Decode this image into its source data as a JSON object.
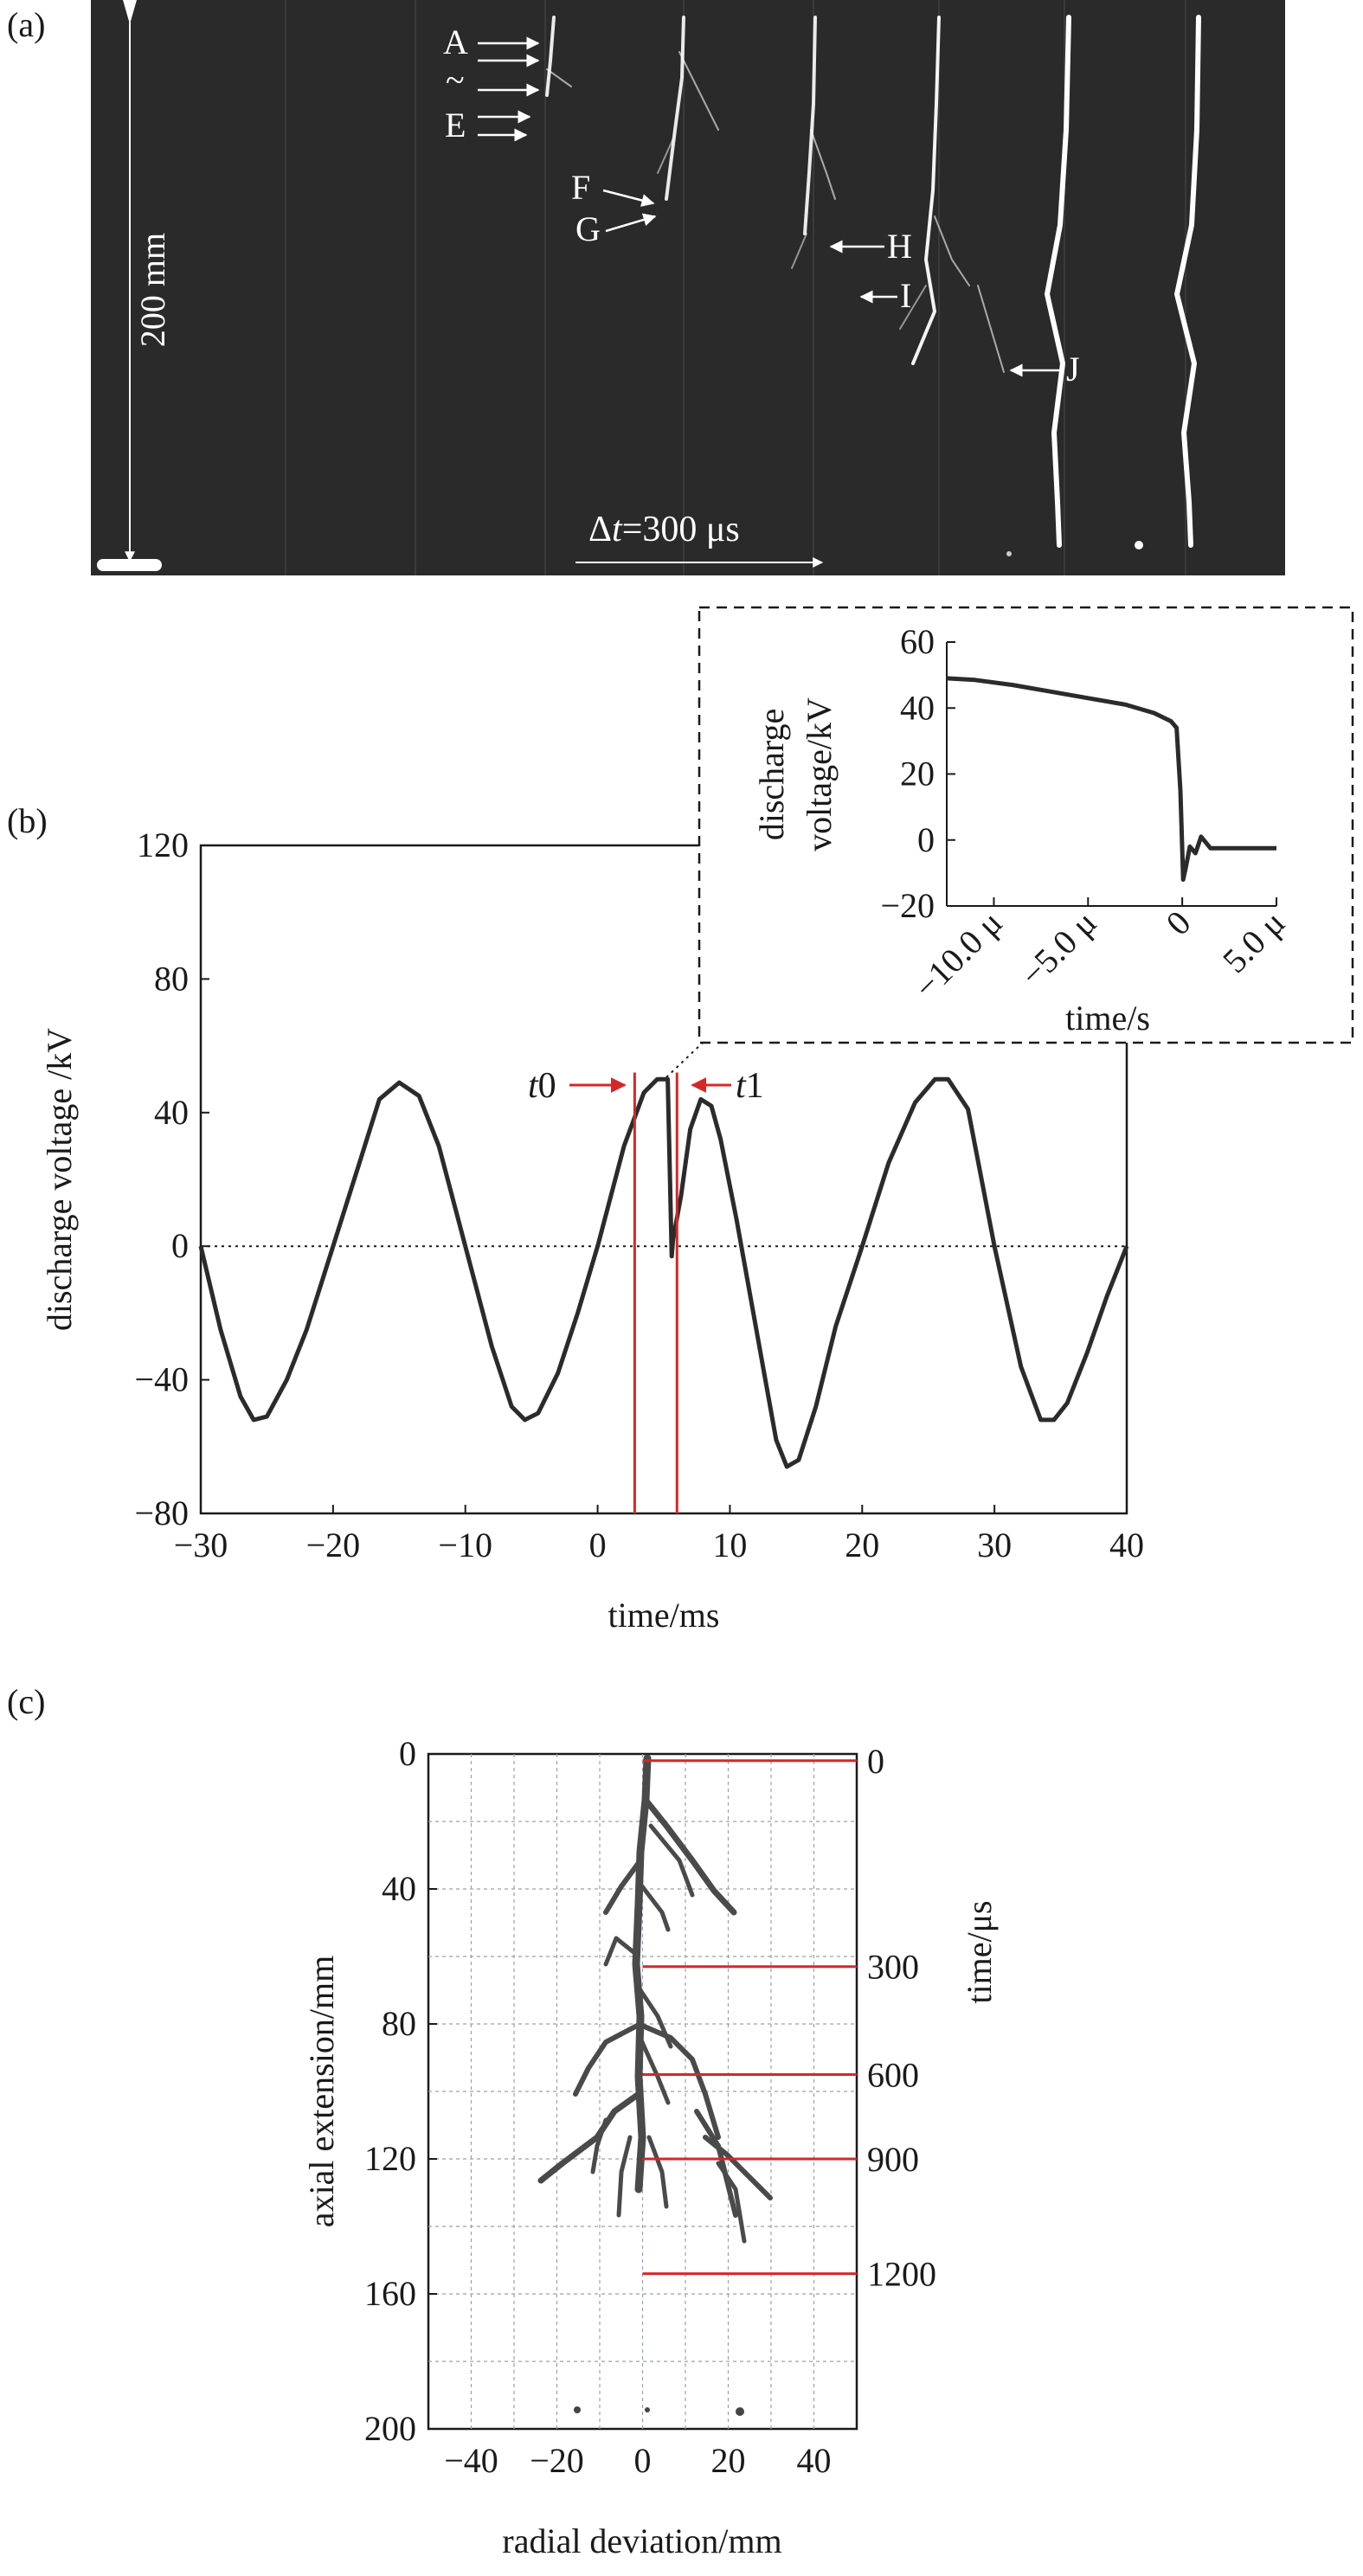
{
  "panel_labels": {
    "a": "(a)",
    "b": "(b)",
    "c": "(c)"
  },
  "colors": {
    "accent_red": "#d62728",
    "curve": "#2b2b2b",
    "photo_bg": "#2a2a2a",
    "streamer": "#ffffff"
  },
  "panel_a": {
    "labels": {
      "A": "A",
      "tilde": "~",
      "E": "E",
      "F": "F",
      "G": "G",
      "H": "H",
      "I": "I",
      "J": "J"
    },
    "scale_vertical": "200 mm",
    "time_scale": {
      "prefix": "Δ",
      "var": "t",
      "suffix": "=300 μs"
    }
  },
  "chart_data": [
    {
      "id": "main",
      "type": "line",
      "xlabel": "time/ms",
      "ylabel": "discharge voltage /kV",
      "xlim": [
        -30,
        40
      ],
      "ylim": [
        -80,
        120
      ],
      "xticks": [
        "−30",
        "−20",
        "−10",
        "0",
        "10",
        "20",
        "30",
        "40"
      ],
      "yticks": [
        "120",
        "80",
        "40",
        "0",
        "−40",
        "−80"
      ],
      "markers": {
        "t0": {
          "italic": "t",
          "num": "0",
          "x": 2.8
        },
        "t1": {
          "italic": "t",
          "num": "1",
          "x": 6.0
        }
      },
      "series": [
        {
          "x": [
            -30,
            -28.5,
            -27,
            -26,
            -25,
            -23.5,
            -22,
            -20,
            -18,
            -16.5,
            -15,
            -13.5,
            -12,
            -10,
            -8,
            -6.5,
            -5.5,
            -4.5,
            -3,
            -1.5,
            0,
            2,
            3.5,
            4.5,
            5.3,
            5.6,
            5.7,
            6.3,
            7,
            7.8,
            8.6,
            9.3,
            10.5,
            12,
            13.5,
            14.3,
            15.2,
            16.5,
            18,
            20,
            22,
            24,
            25.5,
            26.5,
            28,
            30,
            32,
            33.5,
            34.5,
            35.5,
            37,
            38.5,
            40
          ],
          "y": [
            0,
            -25,
            -45,
            -52,
            -51,
            -40,
            -25,
            0,
            25,
            44,
            49,
            45,
            30,
            0,
            -30,
            -48,
            -52,
            -50,
            -38,
            -20,
            0,
            30,
            46,
            50,
            50,
            -3,
            2,
            15,
            35,
            44,
            42,
            32,
            8,
            -25,
            -58,
            -66,
            -64,
            -48,
            -24,
            0,
            25,
            43,
            50,
            50,
            41,
            0,
            -36,
            -52,
            -52,
            -47,
            -32,
            -15,
            0
          ]
        }
      ]
    },
    {
      "id": "inset",
      "type": "line",
      "xlabel": "time/s",
      "ylabel_line1": "discharge",
      "ylabel_line2": "voltage/kV",
      "xlim": [
        -12.5,
        5
      ],
      "ylim": [
        -20,
        60
      ],
      "xticks": [
        "−10.0 μ",
        "−5.0 μ",
        "0",
        "5.0 μ"
      ],
      "yticks": [
        "60",
        "40",
        "20",
        "0",
        "−20"
      ],
      "series": [
        {
          "x": [
            -12.5,
            -11,
            -9,
            -7,
            -5,
            -3,
            -1.5,
            -0.6,
            -0.3,
            -0.1,
            0.05,
            0.2,
            0.4,
            0.7,
            1,
            1.5,
            2,
            3,
            4,
            5
          ],
          "y": [
            49,
            48.5,
            47,
            45,
            43,
            41,
            38.5,
            36,
            34,
            15,
            -12,
            -8,
            -2,
            -4,
            1,
            -2.5,
            -2.5,
            -2.5,
            -2.5,
            -2.5
          ]
        }
      ]
    },
    {
      "id": "branch",
      "type": "scatter",
      "xlabel": "radial deviation/mm",
      "ylabel": "axial extension/mm",
      "ylabel_right": "time/μs",
      "xlim": [
        -50,
        50
      ],
      "ylim": [
        0,
        200
      ],
      "xticks": [
        "−40",
        "−20",
        "0",
        "20",
        "40"
      ],
      "yticks": [
        "0",
        "40",
        "80",
        "120",
        "160",
        "200"
      ],
      "time_marks": [
        {
          "label": "0",
          "y": 2
        },
        {
          "label": "300",
          "y": 63
        },
        {
          "label": "600",
          "y": 95
        },
        {
          "label": "900",
          "y": 120
        },
        {
          "label": "1200",
          "y": 154
        }
      ]
    }
  ]
}
